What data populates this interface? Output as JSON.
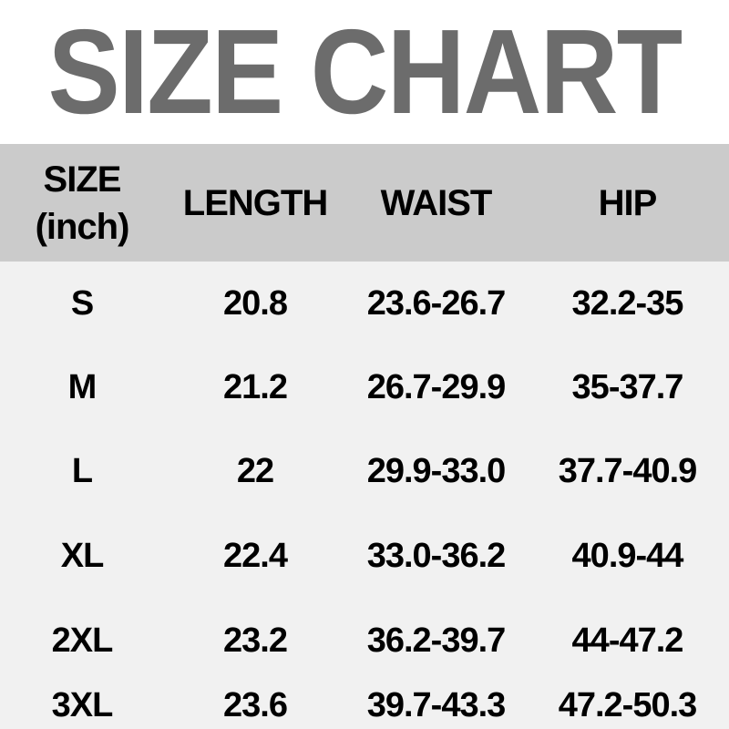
{
  "title": "SIZE CHART",
  "table_header": {
    "col1_line1": "SIZE",
    "col1_line2": "(inch)",
    "col2": "LENGTH",
    "col3": "WAIST",
    "col4": "HIP"
  },
  "chart_data": {
    "type": "table",
    "title": "SIZE CHART",
    "unit": "inch",
    "columns": [
      "SIZE (inch)",
      "LENGTH",
      "WAIST",
      "HIP"
    ],
    "rows": [
      [
        "S",
        "20.8",
        "23.6-26.7",
        "32.2-35"
      ],
      [
        "M",
        "21.2",
        "26.7-29.9",
        "35-37.7"
      ],
      [
        "L",
        "22",
        "29.9-33.0",
        "37.7-40.9"
      ],
      [
        "XL",
        "22.4",
        "33.0-36.2",
        "40.9-44"
      ],
      [
        "2XL",
        "23.2",
        "36.2-39.7",
        "44-47.2"
      ],
      [
        "3XL",
        "23.6",
        "39.7-43.3",
        "47.2-50.3"
      ]
    ]
  },
  "colors": {
    "title_text": "#6c6c6c",
    "header_bg": "#cbcbcb",
    "body_bg": "#f1f1f1",
    "cell_text": "#000000",
    "page_bg": "#ffffff"
  }
}
